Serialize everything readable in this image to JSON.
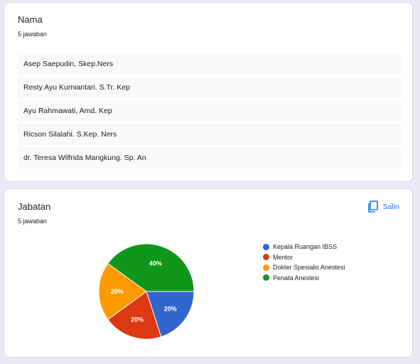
{
  "nama": {
    "title": "Nama",
    "subtitle": "5 jawaban",
    "answers": [
      "Asep Saepudin, Skep.Ners",
      "Resty Ayu Kurniantari. S.Tr. Kep",
      "Ayu Rahmawati, Amd. Kep",
      "Ricson Silalahi. S.Kep. Ners",
      "dr. Teresa Wilfrida Mangkung. Sp. An"
    ]
  },
  "jabatan": {
    "title": "Jabatan",
    "subtitle": "5 jawaban",
    "copy_label": "Salin",
    "copy_icon": "copy-icon"
  },
  "chart_data": {
    "type": "pie",
    "categories": [
      "Kepala Ruangan IBSS",
      "Mentor",
      "Dokter Spesialis Anestesi",
      "Penata Anestesi"
    ],
    "values": [
      20,
      20,
      20,
      40
    ],
    "value_labels": [
      "20%",
      "20%",
      "20%",
      "40%"
    ],
    "colors": [
      "#3366cc",
      "#dc3912",
      "#ff9900",
      "#109618"
    ],
    "legend_position": "right"
  }
}
